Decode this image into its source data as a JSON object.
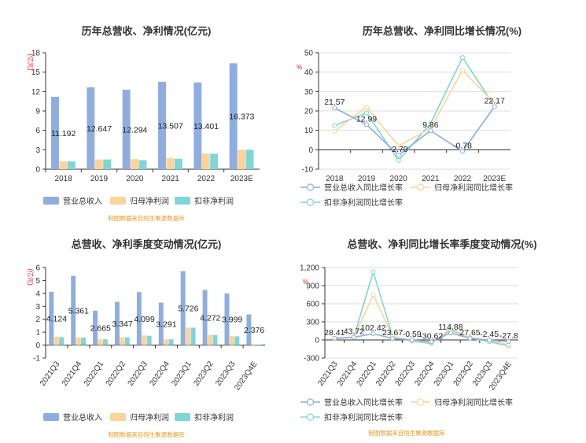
{
  "colors": {
    "revenue": "#8fadde",
    "net_profit": "#fcd49a",
    "deducted_profit": "#7fd6d6"
  },
  "chart_data": [
    {
      "type": "bar",
      "title": "历年总营收、净利情况(亿元)",
      "ylabel": "(亿元)",
      "categories": [
        "2018",
        "2019",
        "2020",
        "2021",
        "2022",
        "2023E"
      ],
      "yticks": [
        "0",
        "3",
        "6",
        "9",
        "12",
        "15",
        "18"
      ],
      "ylim": [
        0,
        18
      ],
      "series": [
        {
          "name": "营业总收入",
          "values": [
            11.192,
            12.647,
            12.294,
            13.507,
            13.401,
            16.373
          ]
        },
        {
          "name": "归母净利润",
          "values": [
            1.2,
            1.5,
            1.55,
            1.7,
            2.4,
            3.0
          ]
        },
        {
          "name": "扣非净利润",
          "values": [
            1.2,
            1.5,
            1.4,
            1.6,
            2.4,
            3.0
          ]
        }
      ],
      "data_labels": [
        "11.192",
        "12.647",
        "12.294",
        "13.507",
        "13.401",
        "16.373"
      ],
      "source": "制图数据来自恒生聚源数据库"
    },
    {
      "type": "line",
      "title": "历年总营收、净利同比增长情况(%)",
      "ylabel": "%",
      "categories": [
        "2018",
        "2019",
        "2020",
        "2021",
        "2022",
        "2023E"
      ],
      "yticks": [
        "-10",
        "0",
        "10",
        "20",
        "30",
        "40",
        "50"
      ],
      "ylim": [
        -10,
        50
      ],
      "series": [
        {
          "name": "营业总收入同比增长率",
          "values": [
            21.57,
            12.99,
            -2.79,
            9.86,
            -0.78,
            22.17
          ]
        },
        {
          "name": "归母净利润同比增长率",
          "values": [
            9.5,
            22.0,
            2.0,
            11.0,
            41.0,
            24.0
          ]
        },
        {
          "name": "扣非净利润同比增长率",
          "values": [
            12.5,
            19.0,
            -5.5,
            13.5,
            47.5,
            22.5
          ]
        }
      ],
      "data_labels": [
        "21.57",
        "12.99",
        "-2.79",
        "9.86",
        "-0.78",
        "22.17"
      ]
    },
    {
      "type": "bar",
      "title": "总营收、净利季度变动情况(亿元)",
      "ylabel": "(亿元)",
      "categories": [
        "2021Q3",
        "2021Q4",
        "2022Q1",
        "2022Q2",
        "2022Q3",
        "2022Q4",
        "2023Q1",
        "2023Q2",
        "2023Q3",
        "2023Q4E"
      ],
      "yticks": [
        "-1",
        "0",
        "1",
        "2",
        "3",
        "4",
        "5",
        "6"
      ],
      "ylim": [
        -1,
        6
      ],
      "series": [
        {
          "name": "营业总收入",
          "values": [
            4.124,
            5.361,
            2.665,
            3.347,
            4.099,
            3.291,
            5.726,
            4.272,
            3.999,
            2.376
          ]
        },
        {
          "name": "归母净利润",
          "values": [
            0.65,
            0.6,
            0.45,
            0.6,
            0.75,
            0.45,
            1.35,
            0.8,
            0.7,
            0.0
          ]
        },
        {
          "name": "扣非净利润",
          "values": [
            0.62,
            0.58,
            0.45,
            0.6,
            0.72,
            0.45,
            1.35,
            0.78,
            0.68,
            -0.05
          ]
        }
      ],
      "data_labels": [
        "4.124",
        "5.361",
        "2.665",
        "3.347",
        "4.099",
        "3.291",
        "5.726",
        "4.272",
        "3.999",
        "2.376"
      ],
      "source": "制图数据来自恒生聚源数据库"
    },
    {
      "type": "line",
      "title": "总营收、净利同比增长率季度变动情况(%)",
      "ylabel": "%",
      "categories": [
        "2021Q3",
        "2021Q4",
        "2022Q1",
        "2022Q2",
        "2022Q3",
        "2022Q4",
        "2023Q1",
        "2023Q2",
        "2023Q3",
        "2023Q4E"
      ],
      "yticks": [
        "-300",
        "0",
        "300",
        "600",
        "900",
        "1,200"
      ],
      "ylim": [
        -300,
        1200
      ],
      "series": [
        {
          "name": "营业总收入同比增长率",
          "values": [
            28.41,
            43.72,
            102.42,
            23.67,
            -0.59,
            -30.62,
            114.88,
            27.65,
            -2.45,
            -27.8
          ]
        },
        {
          "name": "归母净利润同比增长率",
          "values": [
            20,
            40,
            750,
            60,
            -10,
            -40,
            150,
            40,
            -10,
            -80
          ]
        },
        {
          "name": "扣非净利润同比增长率",
          "values": [
            25,
            45,
            1130,
            60,
            -20,
            -60,
            180,
            30,
            -30,
            -100
          ]
        }
      ],
      "data_labels": [
        "28.41",
        "43.72",
        "102.42",
        "23.67",
        "-0.59",
        "-30.62",
        "114.88",
        "27.65",
        "-2.45",
        "-27.8"
      ],
      "source": "制图数据来自恒生聚源数据库"
    }
  ]
}
